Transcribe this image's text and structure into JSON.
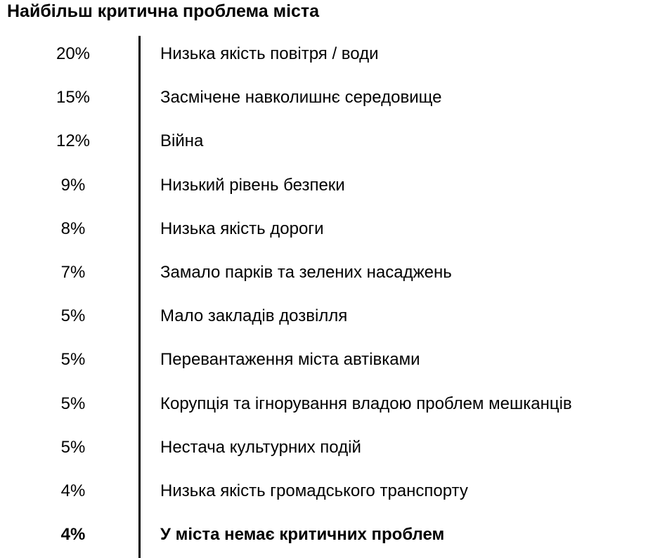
{
  "title": "Найбільш критична проблема міста",
  "rows": [
    {
      "percent": "20%",
      "label": "Низька якість повітря / води"
    },
    {
      "percent": "15%",
      "label": "Засмічене навколишнє середовище"
    },
    {
      "percent": "12%",
      "label": "Війна"
    },
    {
      "percent": "9%",
      "label": "Низький рівень безпеки"
    },
    {
      "percent": "8%",
      "label": "Низька якість дороги"
    },
    {
      "percent": "7%",
      "label": "Замало парків та зелених насаджень"
    },
    {
      "percent": "5%",
      "label": "Мало закладів дозвілля"
    },
    {
      "percent": "5%",
      "label": "Перевантаження міста автівками"
    },
    {
      "percent": "5%",
      "label": "Корупція та ігнорування владою проблем мешканців"
    },
    {
      "percent": "5%",
      "label": "Нестача культурних подій"
    },
    {
      "percent": "4%",
      "label": "Низька якість громадського транспорту"
    },
    {
      "percent": "4%",
      "label": "У міста немає критичних проблем"
    }
  ]
}
